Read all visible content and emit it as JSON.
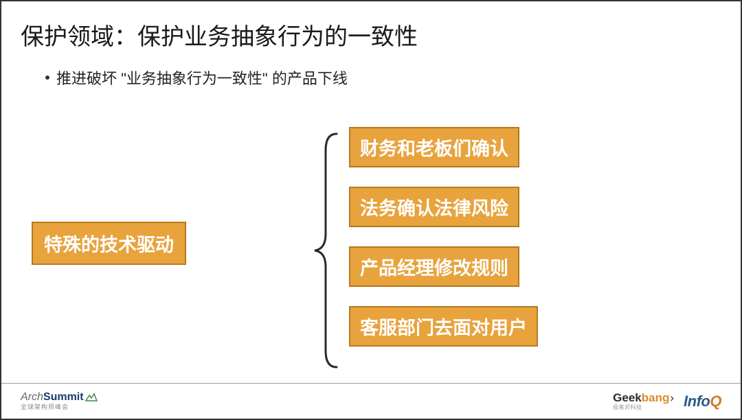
{
  "title": "保护领域：保护业务抽象行为的一致性",
  "bullet": "推进破坏 \"业务抽象行为一致性\" 的产品下线",
  "diagram": {
    "left_box": "特殊的技术驱动",
    "right_boxes": [
      "财务和老板们确认",
      "法务确认法律风险",
      "产品经理修改规则",
      "客服部门去面对用户"
    ],
    "box_fill": "#e8a33d",
    "box_border": "#b5791f",
    "box_text_color": "#ffffff",
    "box_fontsize": 27,
    "brace_color": "#2a2a2a",
    "brace_stroke": 3
  },
  "footer": {
    "archsummit": {
      "part1": "Arch",
      "part2": "Summit",
      "sub": "全球架构师峰会"
    },
    "geekbang": {
      "part1": "Geek",
      "part2": "bang",
      "arrow": "›",
      "sub": "极客邦科技"
    },
    "infoq": {
      "part1": "Info",
      "part2": "Q"
    }
  },
  "colors": {
    "title": "#1a1a1a",
    "text": "#222222",
    "border": "#333333",
    "footer_border": "#999999",
    "background": "#ffffff"
  }
}
